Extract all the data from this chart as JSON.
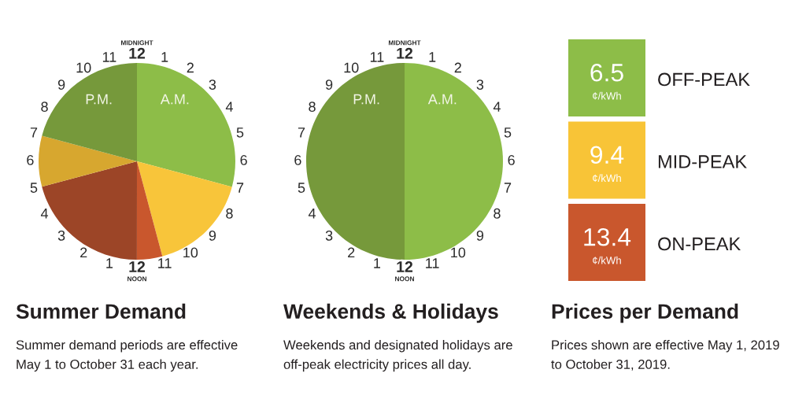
{
  "chart_data": [
    {
      "type": "pie",
      "title": "Summer Demand",
      "subtitle": "Summer demand periods are effective\nMay 1 to October 31 each year.",
      "categories": [
        "A.M.",
        null,
        null,
        null,
        null,
        "P.M."
      ],
      "values": [
        29.17,
        16.67,
        4.17,
        20.83,
        8.33,
        20.83
      ],
      "colors": [
        "#8dbd48",
        "#f8c53a",
        "#c9572d",
        "#9c4527",
        "#d7a72f",
        "#76993b"
      ],
      "annotations": [
        "MIDNIGHT\n12",
        "1",
        "2",
        "3",
        "4",
        "5",
        "6",
        "7",
        "8",
        "9",
        "10",
        "11",
        "12\nNOON",
        "1",
        "2",
        "3",
        "4",
        "5",
        "6",
        "7",
        "8",
        "9",
        "10",
        "11"
      ]
    },
    {
      "type": "pie",
      "title": "Weekends & Holidays",
      "subtitle": "Weekends and designated holidays are\noff-peak electricity prices all day.",
      "categories": [
        "A.M.",
        "P.M."
      ],
      "values": [
        50,
        50
      ],
      "colors": [
        "#8dbd48",
        "#76993b"
      ],
      "annotations": [
        "MIDNIGHT\n12",
        "1",
        "2",
        "3",
        "4",
        "5",
        "6",
        "7",
        "8",
        "9",
        "10",
        "11",
        "12\nNOON",
        "1",
        "2",
        "3",
        "4",
        "5",
        "6",
        "7",
        "8",
        "9",
        "10",
        "11"
      ]
    },
    {
      "type": "other",
      "title": "Prices per Demand",
      "subtitle": "Prices shown are effective May 1, 2019\nto October 31, 2019.",
      "categories": [
        "OFF-PEAK",
        "MID-PEAK",
        "ON-PEAK"
      ],
      "values": [
        6.5,
        9.4,
        13.4
      ],
      "colors": [
        "#8dbd48",
        "#f8c437",
        "#c9572d"
      ],
      "data_labels": true,
      "ylabel": "¢/kWh"
    }
  ]
}
